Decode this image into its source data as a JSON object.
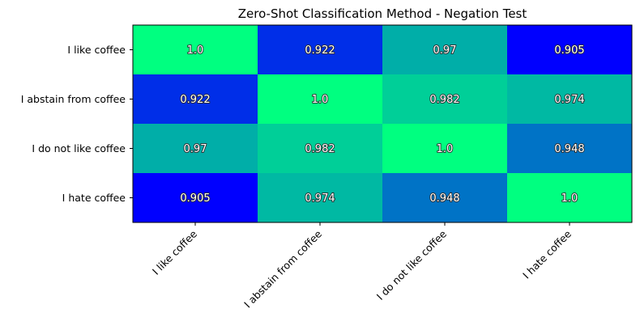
{
  "chart_data": {
    "type": "heatmap",
    "title": "Zero-Shot Classification Method - Negation Test",
    "xlabel": "",
    "ylabel": "",
    "x_categories": [
      "I like coffee",
      "I abstain from coffee",
      "I do not like coffee",
      "I hate coffee"
    ],
    "y_categories": [
      "I like coffee",
      "I abstain from coffee",
      "I do not like coffee",
      "I hate coffee"
    ],
    "values": [
      [
        1.0,
        0.922,
        0.97,
        0.905
      ],
      [
        0.922,
        1.0,
        0.982,
        0.974
      ],
      [
        0.97,
        0.982,
        1.0,
        0.948
      ],
      [
        0.905,
        0.974,
        0.948,
        1.0
      ]
    ],
    "value_labels": [
      [
        "1.0",
        "0.922",
        "0.97",
        "0.905"
      ],
      [
        "0.922",
        "1.0",
        "0.982",
        "0.974"
      ],
      [
        "0.97",
        "0.982",
        "1.0",
        "0.948"
      ],
      [
        "0.905",
        "0.974",
        "0.948",
        "1.0"
      ]
    ],
    "colormap": "winter",
    "colormap_low": "#0000ff",
    "colormap_high": "#00ff80",
    "x_tick_rotation": 45,
    "grid": false,
    "legend": "none"
  }
}
